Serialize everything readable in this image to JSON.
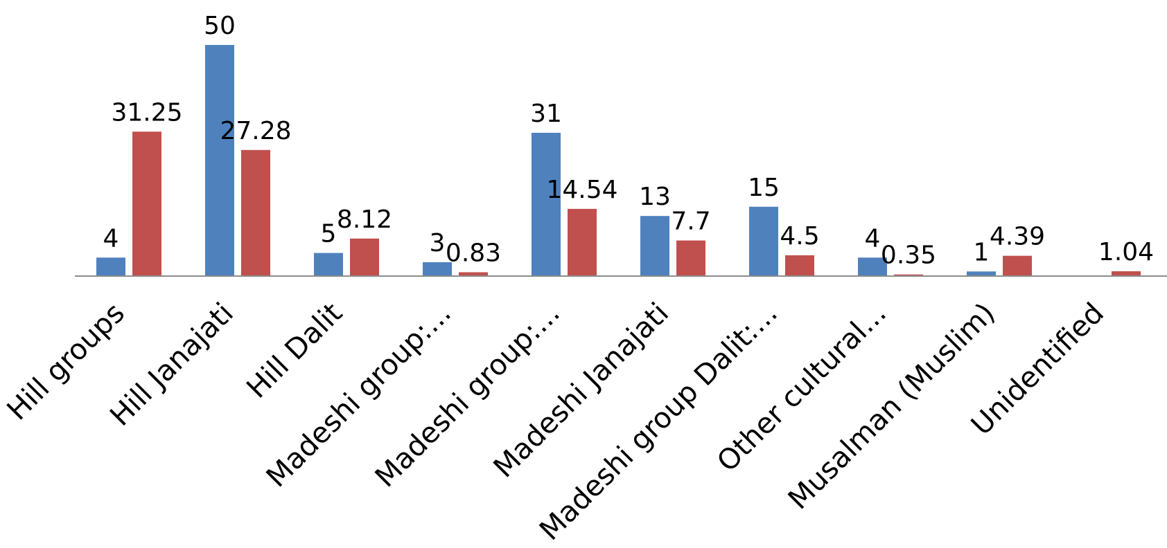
{
  "chart_data": {
    "type": "bar",
    "categories": [
      "Hill groups",
      "Hill Janajati",
      "Hill Dalit",
      "Madeshi group:...",
      "Madeshi group:...",
      "Madeshi Janajati",
      "Madeshi group Dalit:...",
      "Other cultural...",
      "Musalman (Muslim)",
      "Unidentified"
    ],
    "series": [
      {
        "color": "#4F81BD",
        "values": [
          4,
          50,
          5,
          3,
          31,
          13,
          15,
          4,
          1,
          null
        ],
        "labels": [
          "4",
          "50",
          "5",
          "3",
          "31",
          "13",
          "15",
          "4",
          "1",
          ""
        ]
      },
      {
        "color": "#C0504D",
        "values": [
          31.25,
          27.28,
          8.12,
          0.83,
          14.54,
          7.7,
          4.5,
          0.35,
          4.39,
          1.04
        ],
        "labels": [
          "31.25",
          "27.28",
          "8.12",
          "0.83",
          "14.54",
          "7.7",
          "4.5",
          "0.35",
          "4.39",
          "1.04"
        ]
      }
    ],
    "title": "",
    "xlabel": "",
    "ylabel": "",
    "ylim": [
      0,
      50
    ],
    "grid": false,
    "legend": "none"
  }
}
